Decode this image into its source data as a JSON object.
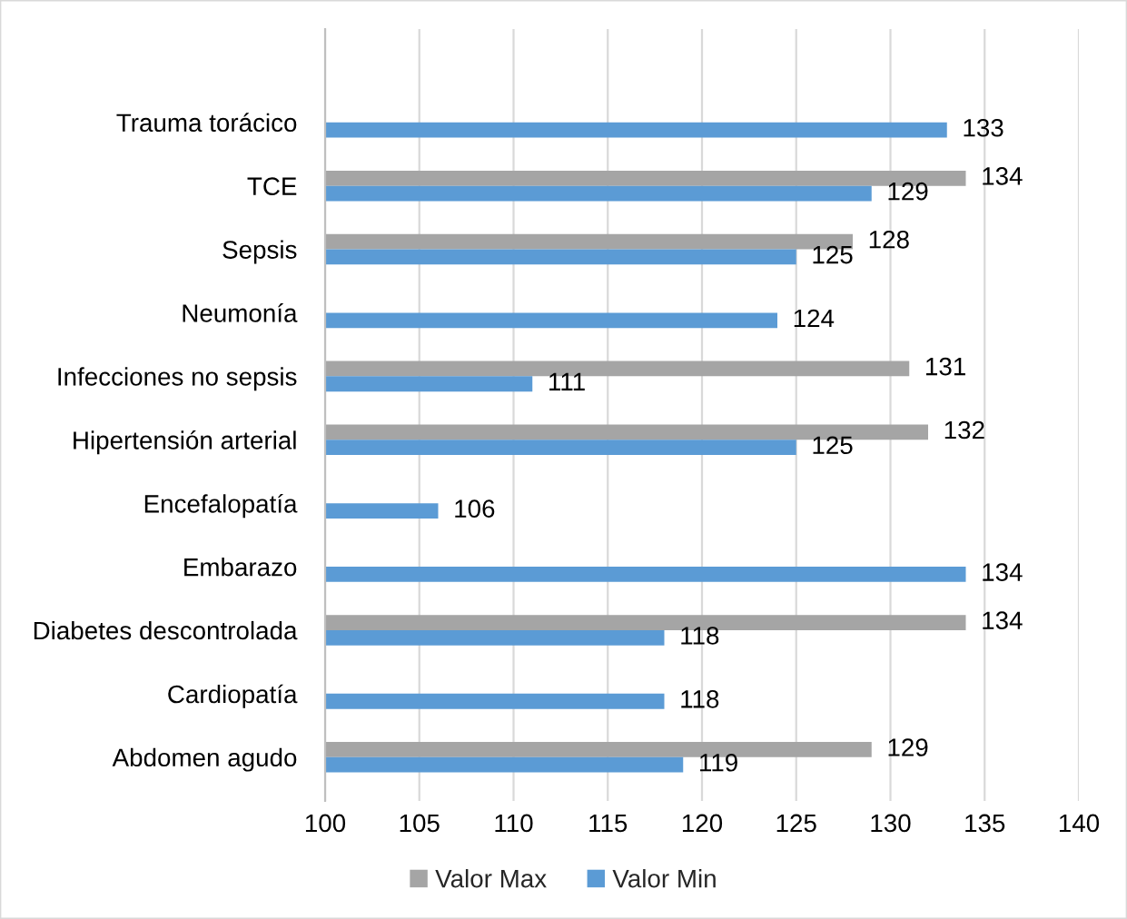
{
  "chart_data": {
    "type": "bar",
    "orientation": "horizontal",
    "categories": [
      "Trauma torácico",
      "TCE",
      "Sepsis",
      "Neumonía",
      "Infecciones no sepsis",
      "Hipertensión arterial",
      "Encefalopatía",
      "Embarazo",
      "Diabetes descontrolada",
      "Cardiopatía",
      "Abdomen agudo"
    ],
    "series": [
      {
        "name": "Valor Max",
        "color": "#a5a5a5",
        "values": [
          null,
          134,
          128,
          null,
          131,
          132,
          null,
          null,
          134,
          null,
          129
        ]
      },
      {
        "name": "Valor Min",
        "color": "#5b9bd5",
        "values": [
          133,
          129,
          125,
          124,
          111,
          125,
          106,
          134,
          118,
          118,
          119
        ]
      }
    ],
    "xlim": [
      100,
      140
    ],
    "xticks": [
      100,
      105,
      110,
      115,
      120,
      125,
      130,
      135,
      140
    ],
    "grid": "x",
    "legend": "bottom",
    "data_labels": true
  }
}
